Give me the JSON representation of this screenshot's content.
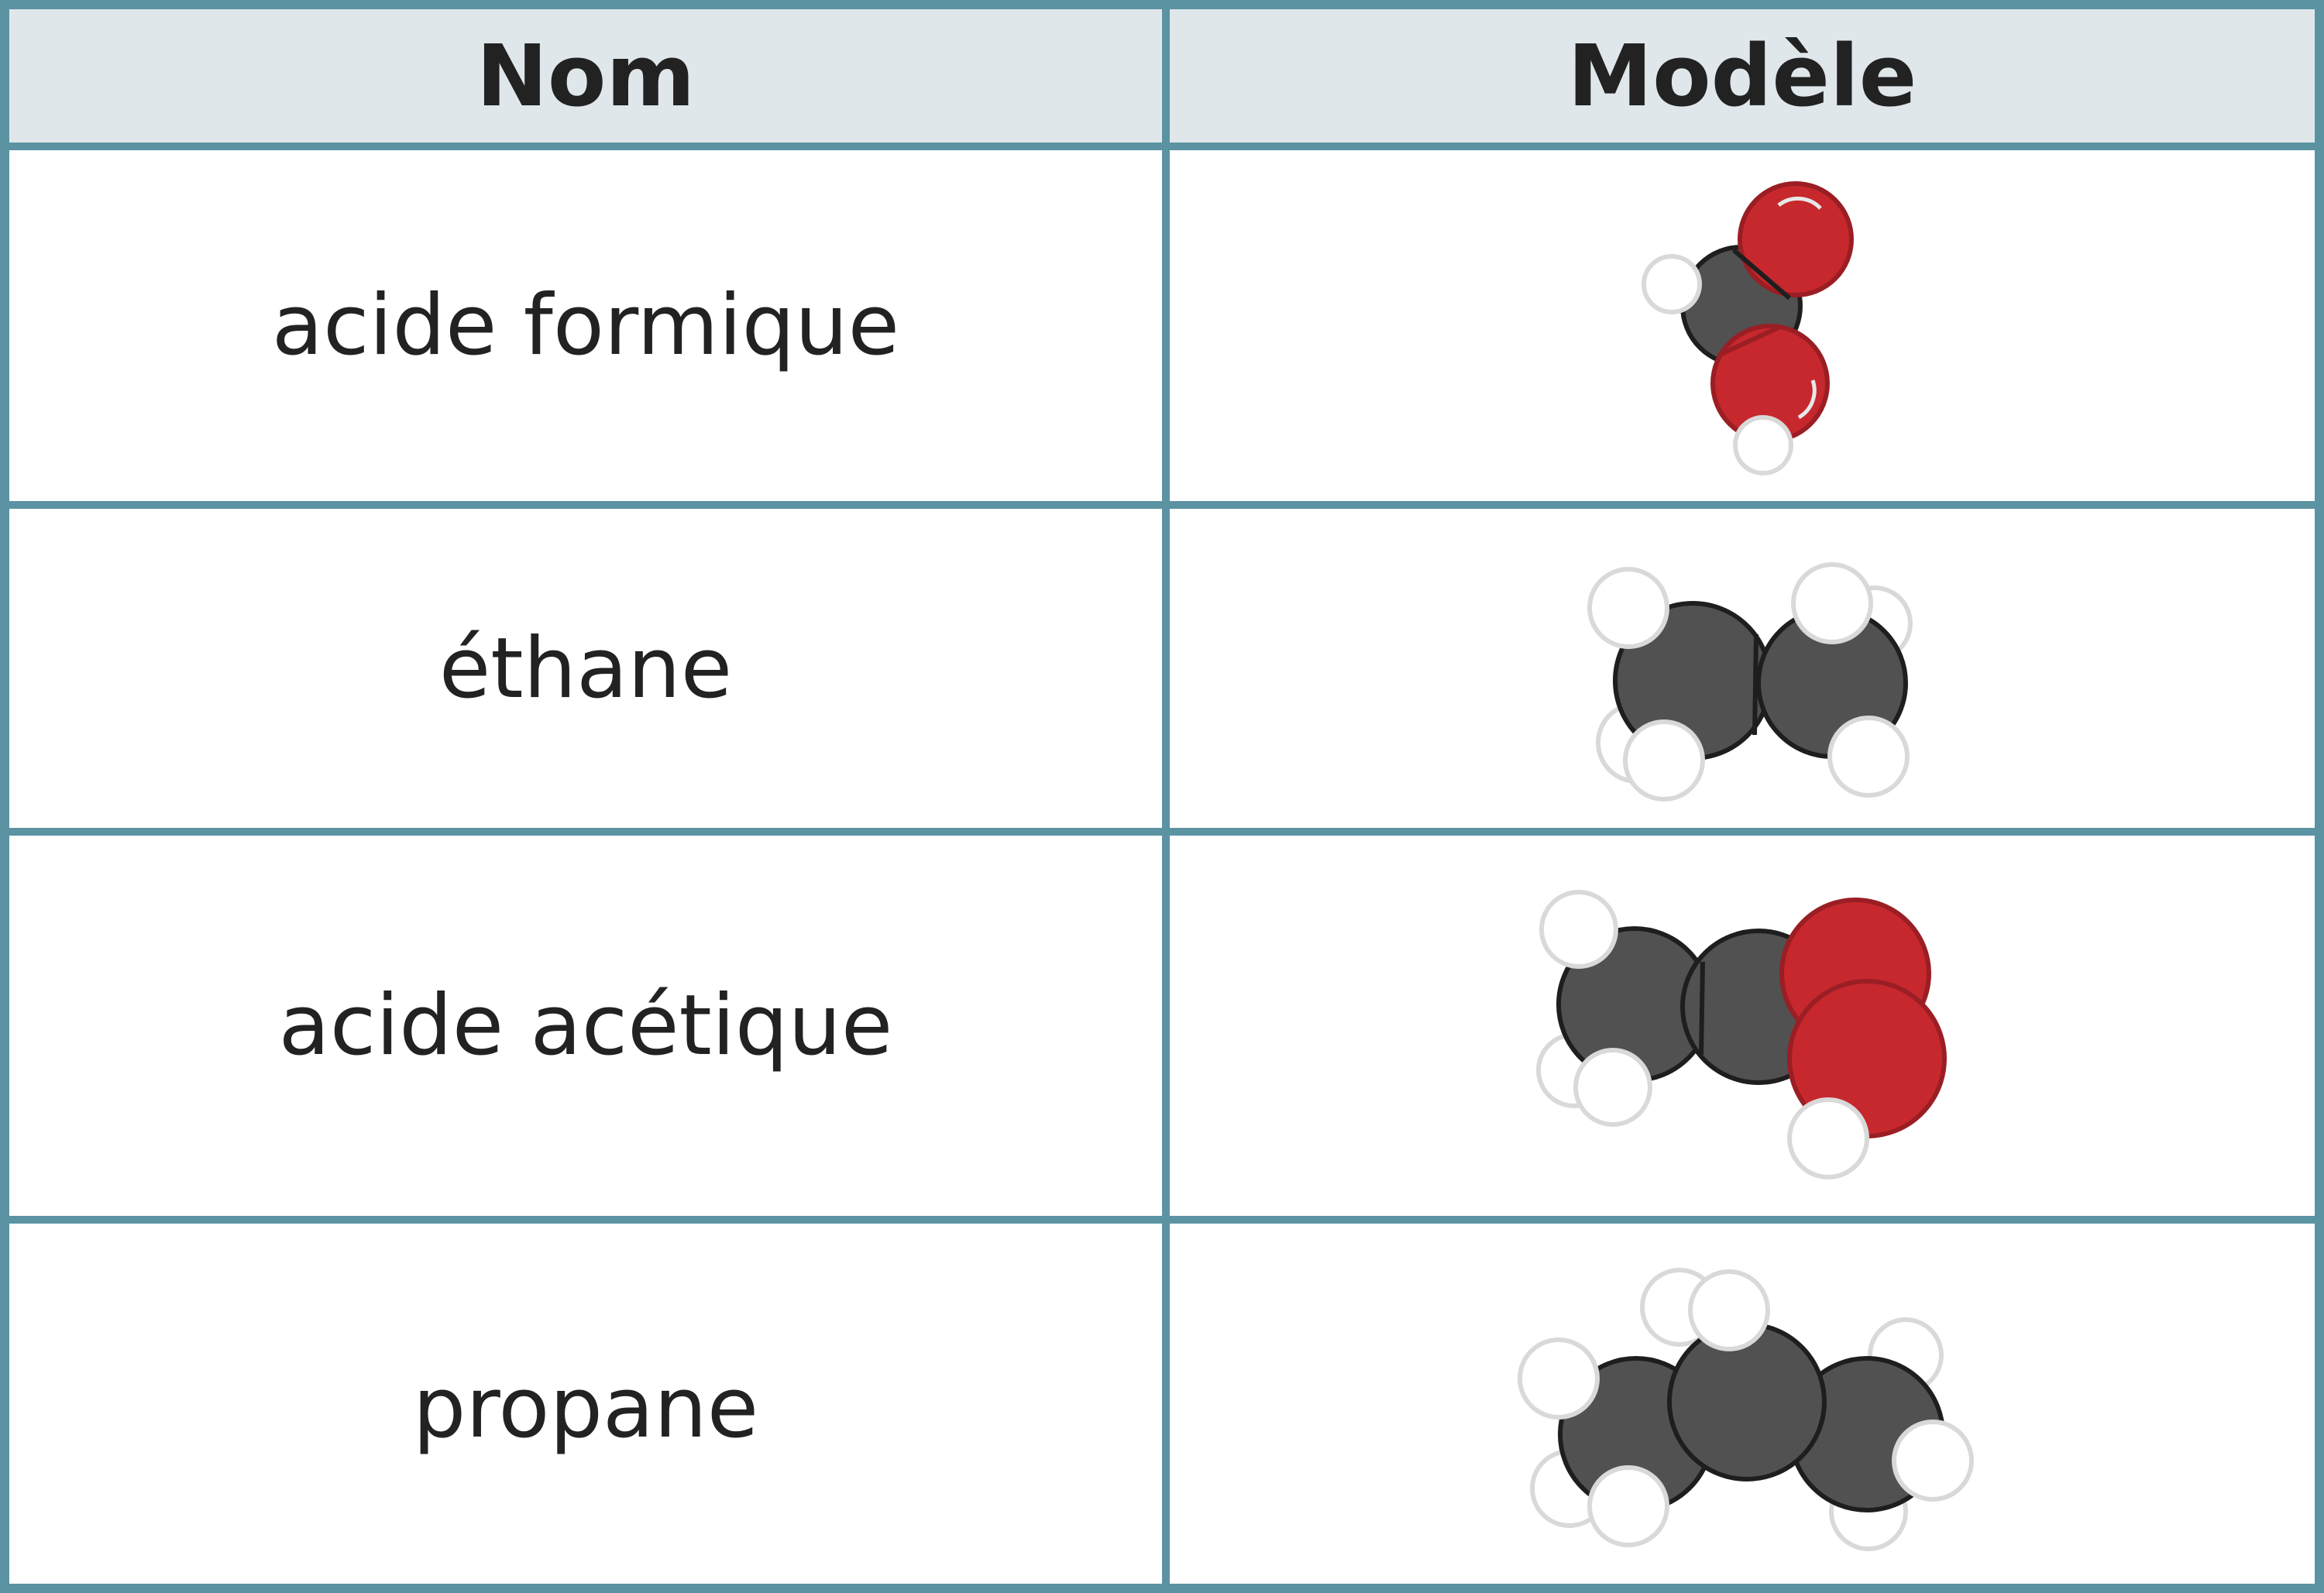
{
  "table": {
    "headers": {
      "name": "Nom",
      "model": "Modèle"
    },
    "rows": [
      {
        "name": "acide formique",
        "model_atoms": [
          "C",
          "O",
          "O",
          "H",
          "H"
        ]
      },
      {
        "name": "éthane",
        "model_atoms": [
          "C",
          "C",
          "H",
          "H",
          "H",
          "H",
          "H",
          "H"
        ]
      },
      {
        "name": "acide acétique",
        "model_atoms": [
          "C",
          "C",
          "O",
          "O",
          "H",
          "H",
          "H",
          "H"
        ]
      },
      {
        "name": "propane",
        "model_atoms": [
          "C",
          "C",
          "C",
          "H",
          "H",
          "H",
          "H",
          "H",
          "H",
          "H",
          "H"
        ]
      }
    ]
  },
  "colors": {
    "border": "#5b93a3",
    "header_background": "#e0e7eb",
    "carbon": "#515151",
    "oxygen": "#c6282e",
    "hydrogen": "#ffffff"
  }
}
